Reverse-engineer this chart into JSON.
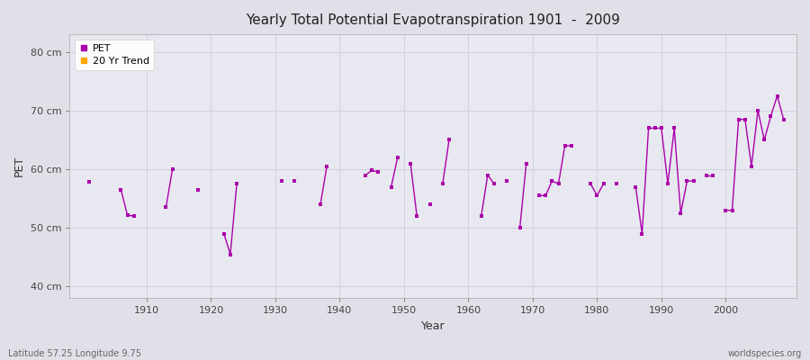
{
  "title": "Yearly Total Potential Evapotranspiration 1901  -  2009",
  "xlabel": "Year",
  "ylabel": "PET",
  "lat_lon_label": "Latitude 57.25 Longitude 9.75",
  "website_label": "worldspecies.org",
  "pet_color": "#AA00AA",
  "trend_color": "#FFA500",
  "fig_bg_color": "#E0E0E8",
  "plot_bg_color": "#E8E8F0",
  "grid_color": "#C8C8D8",
  "ylim": [
    38,
    83
  ],
  "xlim": [
    1898,
    2011
  ],
  "ytick_labels": [
    "40 cm",
    "50 cm",
    "60 cm",
    "70 cm",
    "80 cm"
  ],
  "ytick_values": [
    40,
    50,
    60,
    70,
    80
  ],
  "xtick_values": [
    1910,
    1920,
    1930,
    1940,
    1950,
    1960,
    1970,
    1980,
    1990,
    2000
  ],
  "line_segments": [
    [
      [
        1901
      ],
      [
        57.8
      ]
    ],
    [
      [
        1906,
        1907,
        1908
      ],
      [
        56.5,
        52.2,
        52.0
      ]
    ],
    [
      [
        1913,
        1914
      ],
      [
        53.5,
        60.0
      ]
    ],
    [
      [
        1918
      ],
      [
        56.5
      ]
    ],
    [
      [
        1922,
        1923,
        1924
      ],
      [
        49.0,
        45.5,
        57.5
      ]
    ],
    [
      [
        1931
      ],
      [
        58.0
      ]
    ],
    [
      [
        1933
      ],
      [
        58.0
      ]
    ],
    [
      [
        1937,
        1938
      ],
      [
        54.0,
        60.5
      ]
    ],
    [
      [
        1944,
        1945,
        1946
      ],
      [
        59.0,
        59.8,
        59.5
      ]
    ],
    [
      [
        1948,
        1949
      ],
      [
        57.0,
        62.0
      ]
    ],
    [
      [
        1951,
        1952
      ],
      [
        61.0,
        52.0
      ]
    ],
    [
      [
        1954
      ],
      [
        54.0
      ]
    ],
    [
      [
        1956,
        1957
      ],
      [
        57.5,
        65.0
      ]
    ],
    [
      [
        1962,
        1963,
        1964
      ],
      [
        52.0,
        59.0,
        57.5
      ]
    ],
    [
      [
        1966
      ],
      [
        58.0
      ]
    ],
    [
      [
        1968,
        1969
      ],
      [
        50.0,
        61.0
      ]
    ],
    [
      [
        1971,
        1972,
        1973,
        1974,
        1975,
        1976
      ],
      [
        55.5,
        55.5,
        58.0,
        57.5,
        64.0,
        64.0
      ]
    ],
    [
      [
        1979,
        1980,
        1981
      ],
      [
        57.5,
        55.5,
        57.5
      ]
    ],
    [
      [
        1983
      ],
      [
        57.5
      ]
    ],
    [
      [
        1986,
        1987,
        1988,
        1989,
        1990,
        1991,
        1992,
        1993,
        1994,
        1995
      ],
      [
        57.0,
        49.0,
        67.0,
        67.0,
        67.0,
        57.5,
        67.0,
        52.5,
        58.0,
        58.0
      ]
    ],
    [
      [
        1997,
        1998
      ],
      [
        59.0,
        59.0
      ]
    ],
    [
      [
        2000,
        2001,
        2002,
        2003,
        2004,
        2005,
        2006,
        2007,
        2008,
        2009
      ],
      [
        53.0,
        53.0,
        68.5,
        68.5,
        60.5,
        70.0,
        65.0,
        69.0,
        72.5,
        68.5
      ]
    ]
  ]
}
